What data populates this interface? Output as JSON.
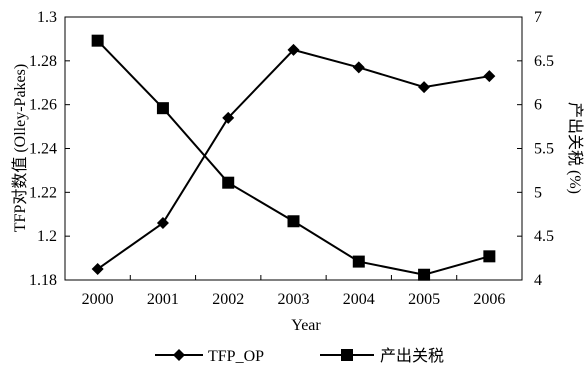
{
  "chart_data": {
    "type": "line",
    "x": [
      "2000",
      "2001",
      "2002",
      "2003",
      "2004",
      "2005",
      "2006"
    ],
    "xlabel": "Year",
    "ylabel_left": "TFP对数值 (Olley-Pakes)",
    "ylabel_right": "产出关税 (%)",
    "ylim_left": [
      1.18,
      1.3
    ],
    "ylim_right": [
      4,
      7
    ],
    "yticks_left": [
      "1.18",
      "1.2",
      "1.22",
      "1.24",
      "1.26",
      "1.28",
      "1.3"
    ],
    "yticks_right": [
      "4",
      "4.5",
      "5",
      "5.5",
      "6",
      "6.5",
      "7"
    ],
    "grid": false,
    "legend_position": "bottom",
    "series": [
      {
        "name": "TFP_OP",
        "axis": "left",
        "marker": "diamond",
        "values": [
          1.185,
          1.206,
          1.254,
          1.285,
          1.277,
          1.268,
          1.273
        ]
      },
      {
        "name": "产出关税",
        "axis": "right",
        "marker": "square",
        "values": [
          6.73,
          5.96,
          5.11,
          4.67,
          4.21,
          4.06,
          4.27
        ]
      }
    ]
  }
}
